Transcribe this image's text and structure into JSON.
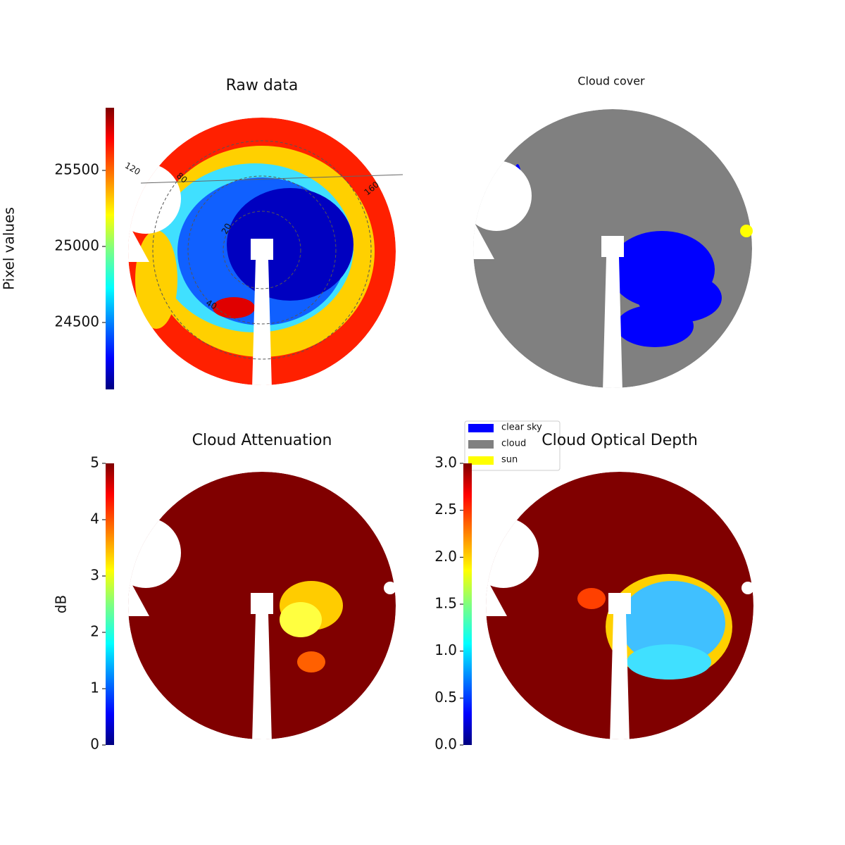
{
  "chart_data": [
    {
      "type": "image",
      "title": "Raw data",
      "colorbar_label": "Pixel values",
      "cmap": "jet",
      "ylim": [
        24060,
        25912
      ],
      "yticks": [
        24500,
        25000,
        25500
      ],
      "annotations": [
        "120",
        "80",
        "20",
        "40",
        "160"
      ]
    },
    {
      "type": "image",
      "title": "Cloud cover",
      "legend": "bottom-left",
      "series": [
        {
          "name": "clear sky",
          "color": "#0000ff"
        },
        {
          "name": "cloud",
          "color": "#808080"
        },
        {
          "name": "sun",
          "color": "#ffff00"
        }
      ]
    },
    {
      "type": "image",
      "title": "Cloud Attenuation",
      "colorbar_label": "dB",
      "cmap": "jet",
      "ylim": [
        0,
        5
      ],
      "yticks": [
        0,
        1,
        2,
        3,
        4,
        5
      ]
    },
    {
      "type": "image",
      "title": "Cloud Optical Depth",
      "cmap": "jet",
      "ylim": [
        0,
        3
      ],
      "yticks": [
        {
          "value": 0,
          "label": "0.0"
        },
        {
          "value": 0.5,
          "label": "0.5"
        },
        {
          "value": 1,
          "label": "1.0"
        },
        {
          "value": 1.5,
          "label": "1.5"
        },
        {
          "value": 2,
          "label": "2.0"
        },
        {
          "value": 2.5,
          "label": "2.5"
        },
        {
          "value": 3,
          "label": "3.0"
        }
      ]
    }
  ]
}
